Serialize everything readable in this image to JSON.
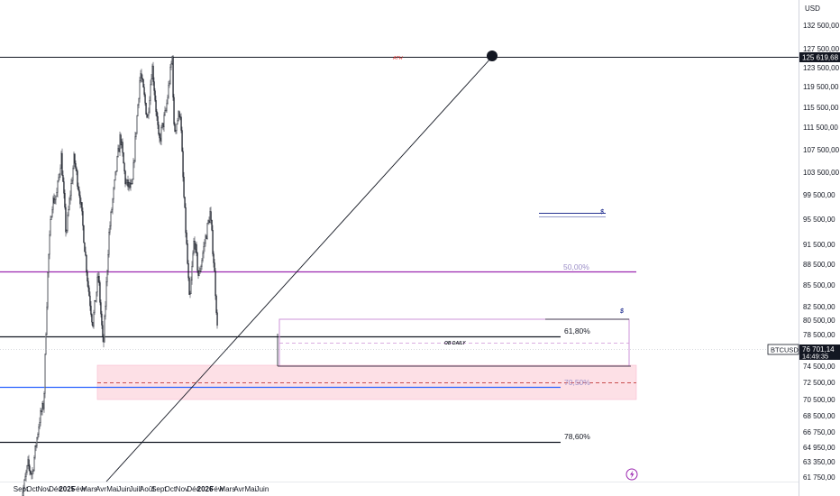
{
  "chart_data": {
    "type": "candlestick",
    "symbol": "BTCUSD",
    "currency": "USD",
    "y_axis_labels": [
      "132 500,00",
      "127 500,00",
      "123 500,00",
      "119 500,00",
      "115 500,00",
      "111 500,00",
      "107 500,00",
      "103 500,00",
      "99 500,00",
      "95 500,00",
      "91 500,00",
      "88 500,00",
      "85 500,00",
      "82 500,00",
      "80 500,00",
      "78 500,00",
      "74 500,00",
      "72 500,00",
      "70 500,00",
      "68 500,00",
      "66 750,00",
      "64 950,00",
      "63 350,00",
      "61 750,00"
    ],
    "x_axis_labels": [
      {
        "label": "Sept",
        "bold": false
      },
      {
        "label": "Oct",
        "bold": false
      },
      {
        "label": "Nov",
        "bold": false
      },
      {
        "label": "Déc",
        "bold": false
      },
      {
        "label": "2025",
        "bold": true
      },
      {
        "label": "Févr",
        "bold": false
      },
      {
        "label": "Mars",
        "bold": false
      },
      {
        "label": "Avr",
        "bold": false
      },
      {
        "label": "Mai",
        "bold": false
      },
      {
        "label": "Juin",
        "bold": false
      },
      {
        "label": "Juill",
        "bold": false
      },
      {
        "label": "Août",
        "bold": false
      },
      {
        "label": "Sept",
        "bold": false
      },
      {
        "label": "Oct",
        "bold": false
      },
      {
        "label": "Nov",
        "bold": false
      },
      {
        "label": "Déc",
        "bold": false
      },
      {
        "label": "2026",
        "bold": true
      },
      {
        "label": "Févr",
        "bold": false
      },
      {
        "label": "Mars",
        "bold": false
      },
      {
        "label": "Avr",
        "bold": false
      },
      {
        "label": "Mai",
        "bold": false
      },
      {
        "label": "Juin",
        "bold": false
      }
    ],
    "ath_price": "125 619,68",
    "current_price": "76 701,14",
    "countdown": "14:49:35",
    "price_path": [
      {
        "t": "2024-09-01",
        "p": 59000
      },
      {
        "t": "2024-09-20",
        "p": 63000
      },
      {
        "t": "2024-10-01",
        "p": 62000
      },
      {
        "t": "2024-10-20",
        "p": 68000
      },
      {
        "t": "2024-11-01",
        "p": 70000
      },
      {
        "t": "2024-11-12",
        "p": 88000
      },
      {
        "t": "2024-11-22",
        "p": 98000
      },
      {
        "t": "2024-12-05",
        "p": 99500
      },
      {
        "t": "2024-12-17",
        "p": 106500
      },
      {
        "t": "2024-12-30",
        "p": 93000
      },
      {
        "t": "2025-01-20",
        "p": 106000
      },
      {
        "t": "2025-02-05",
        "p": 99000
      },
      {
        "t": "2025-02-25",
        "p": 86000
      },
      {
        "t": "2025-03-10",
        "p": 80000
      },
      {
        "t": "2025-03-25",
        "p": 87000
      },
      {
        "t": "2025-04-07",
        "p": 76500
      },
      {
        "t": "2025-04-22",
        "p": 93000
      },
      {
        "t": "2025-05-22",
        "p": 110000
      },
      {
        "t": "2025-06-05",
        "p": 101500
      },
      {
        "t": "2025-06-22",
        "p": 100500
      },
      {
        "t": "2025-07-14",
        "p": 122500
      },
      {
        "t": "2025-08-02",
        "p": 113000
      },
      {
        "t": "2025-08-14",
        "p": 124000
      },
      {
        "t": "2025-09-01",
        "p": 108500
      },
      {
        "t": "2025-09-20",
        "p": 115000
      },
      {
        "t": "2025-10-06",
        "p": 125619.68
      },
      {
        "t": "2025-10-11",
        "p": 110500
      },
      {
        "t": "2025-10-27",
        "p": 115000
      },
      {
        "t": "2025-11-05",
        "p": 100000
      },
      {
        "t": "2025-11-21",
        "p": 82500
      },
      {
        "t": "2025-12-03",
        "p": 92500
      },
      {
        "t": "2025-12-15",
        "p": 86500
      },
      {
        "t": "2026-01-05",
        "p": 93500
      },
      {
        "t": "2026-01-14",
        "p": 96500
      },
      {
        "t": "2026-01-25",
        "p": 88000
      },
      {
        "t": "2026-01-31",
        "p": 82000
      },
      {
        "t": "2026-02-04",
        "p": 76701.14
      }
    ],
    "annotations": {
      "ath_label": "ATH",
      "ob_label": "OB DAILY",
      "fib_618": "61,80%",
      "fib_786_low": "78,60%",
      "fib_705": "70,50%",
      "fib_500": "50,00%",
      "dollar_mark": "$"
    },
    "colors": {
      "candle": "#131722",
      "purple_line": "#9c27b0",
      "blue_line": "#2962ff",
      "zone_fill": "#fde0e6",
      "ath_line": "#131722",
      "price_tag": "#131722"
    }
  }
}
